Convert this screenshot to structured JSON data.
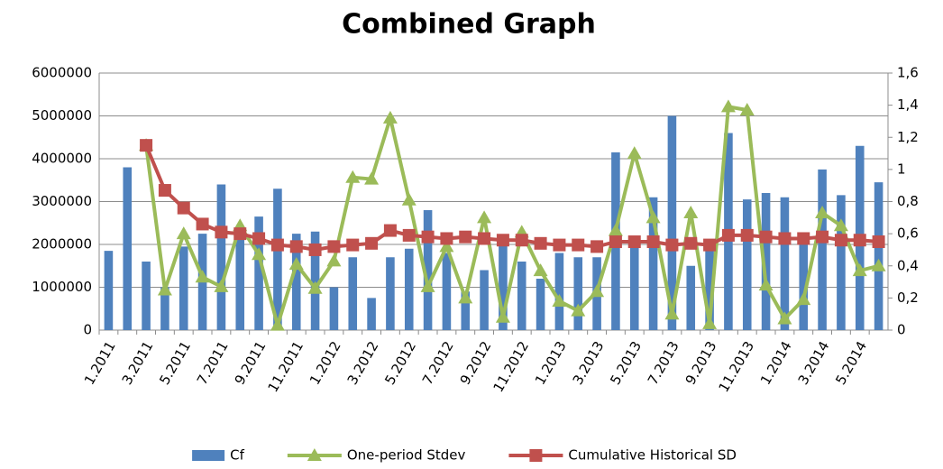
{
  "chart_data": {
    "type": "bar",
    "title": "Combined Graph",
    "categories": [
      "1.2011",
      null,
      "3.2011",
      null,
      "5.2011",
      null,
      "7.2011",
      null,
      "9.2011",
      null,
      "11.2011",
      null,
      "1.2012",
      null,
      "3.2012",
      null,
      "5.2012",
      null,
      "7.2012",
      null,
      "9.2012",
      null,
      "11.2012",
      null,
      "1.2013",
      null,
      "3.2013",
      null,
      "5.2013",
      null,
      "7.2013",
      null,
      "9.2013",
      null,
      "11.2013",
      null,
      "1.2014",
      null,
      "3.2014",
      null,
      "5.2014",
      null
    ],
    "series": [
      {
        "name": "Cf",
        "type": "bar",
        "color": "#4f81bd",
        "values": [
          1850000,
          3800000,
          1600000,
          1000000,
          1950000,
          2250000,
          3400000,
          2200000,
          2650000,
          3300000,
          2250000,
          2300000,
          1000000,
          1700000,
          750000,
          1700000,
          1900000,
          2800000,
          1800000,
          900000,
          1400000,
          2000000,
          1600000,
          1200000,
          1800000,
          1700000,
          1700000,
          4150000,
          2000000,
          3100000,
          5000000,
          1500000,
          2000000,
          4600000,
          3050000,
          3200000,
          3100000,
          2000000,
          3750000,
          3150000,
          4300000,
          3450000
        ]
      },
      {
        "name": "One-period Stdev",
        "type": "line",
        "marker": "triangle",
        "axis": "y2",
        "color": "#9bbb59",
        "values": [
          null,
          null,
          1.15,
          0.25,
          0.6,
          0.33,
          0.27,
          0.65,
          0.47,
          0.03,
          0.41,
          0.26,
          0.43,
          0.95,
          0.94,
          1.32,
          0.81,
          0.27,
          0.52,
          0.2,
          0.7,
          0.08,
          0.61,
          0.37,
          0.18,
          0.12,
          0.24,
          0.62,
          1.1,
          0.7,
          0.1,
          0.73,
          0.04,
          1.39,
          1.37,
          0.28,
          0.07,
          0.19,
          0.73,
          0.65,
          0.37,
          0.4
        ]
      },
      {
        "name": "Cumulative Historical SD",
        "type": "line",
        "marker": "square",
        "axis": "y2",
        "color": "#c0504d",
        "values": [
          null,
          null,
          1.15,
          0.87,
          0.76,
          0.66,
          0.61,
          0.6,
          0.57,
          0.53,
          0.52,
          0.5,
          0.52,
          0.53,
          0.54,
          0.62,
          0.59,
          0.58,
          0.57,
          0.58,
          0.57,
          0.56,
          0.56,
          0.54,
          0.53,
          0.53,
          0.52,
          0.55,
          0.55,
          0.55,
          0.53,
          0.54,
          0.53,
          0.59,
          0.59,
          0.58,
          0.57,
          0.57,
          0.58,
          0.56,
          0.56,
          0.55
        ]
      }
    ],
    "ylim": [
      0,
      6000000
    ],
    "yticks": [
      0,
      1000000,
      2000000,
      3000000,
      4000000,
      5000000,
      6000000
    ],
    "y2lim": [
      0,
      1.6
    ],
    "y2ticks": [
      0,
      {
        "value": 0.2,
        "label": "0,2"
      },
      {
        "value": 0.4,
        "label": "0,4"
      },
      {
        "value": 0.6,
        "label": "0,6"
      },
      {
        "value": 0.8,
        "label": "0,8"
      },
      1,
      {
        "value": 1.2,
        "label": "1,2"
      },
      {
        "value": 1.4,
        "label": "1,4"
      },
      {
        "value": 1.6,
        "label": "1,6"
      }
    ],
    "grid": true,
    "legend": "bottom"
  }
}
